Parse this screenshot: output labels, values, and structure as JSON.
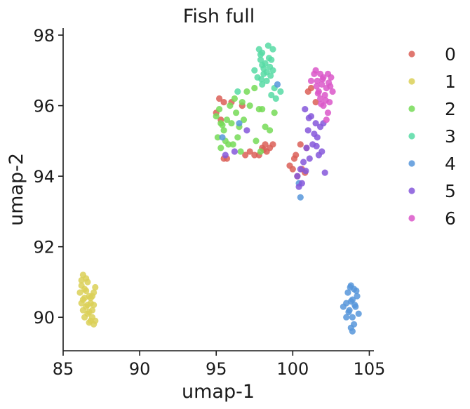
{
  "chart_data": {
    "type": "scatter",
    "title": "Fish full",
    "xlabel": "umap-1",
    "ylabel": "umap-2",
    "xlim": [
      85,
      105.3
    ],
    "ylim": [
      89.05,
      98.2
    ],
    "xticks": [
      85,
      90,
      95,
      100,
      105
    ],
    "yticks": [
      90,
      92,
      94,
      96,
      98
    ],
    "xtick_labels": [
      "85",
      "90",
      "95",
      "100",
      "105"
    ],
    "ytick_labels": [
      "90",
      "92",
      "94",
      "96",
      "98"
    ],
    "grid": false,
    "legend_position": "right",
    "series": [
      {
        "name": "0",
        "color": "#db5f57",
        "points": [
          [
            95.2,
            96.2
          ],
          [
            95.5,
            96.1
          ],
          [
            95.0,
            95.8
          ],
          [
            95.3,
            95.6
          ],
          [
            96.0,
            96.1
          ],
          [
            96.7,
            96.0
          ],
          [
            95.7,
            94.5
          ],
          [
            97.5,
            94.6
          ],
          [
            97.8,
            94.6
          ],
          [
            98.0,
            94.8
          ],
          [
            98.2,
            94.9
          ],
          [
            98.5,
            94.8
          ],
          [
            98.3,
            94.7
          ],
          [
            98.7,
            94.9
          ],
          [
            99.8,
            94.3
          ],
          [
            100.0,
            94.2
          ],
          [
            100.2,
            94.6
          ],
          [
            100.5,
            94.9
          ],
          [
            100.3,
            94.0
          ],
          [
            100.6,
            94.2
          ],
          [
            100.1,
            94.5
          ],
          [
            100.8,
            94.1
          ],
          [
            101.0,
            96.4
          ],
          [
            101.2,
            96.5
          ],
          [
            101.5,
            96.1
          ],
          [
            100.9,
            94.8
          ],
          [
            97.2,
            94.7
          ],
          [
            96.9,
            94.6
          ],
          [
            98.1,
            94.75
          ],
          [
            95.5,
            94.5
          ]
        ]
      },
      {
        "name": "1",
        "color": "#dbd057",
        "points": [
          [
            86.3,
            91.2
          ],
          [
            86.5,
            91.1
          ],
          [
            86.2,
            90.9
          ],
          [
            86.6,
            91.0
          ],
          [
            86.4,
            90.8
          ],
          [
            86.1,
            90.7
          ],
          [
            86.7,
            90.6
          ],
          [
            86.3,
            90.5
          ],
          [
            86.8,
            90.4
          ],
          [
            86.2,
            90.4
          ],
          [
            86.5,
            90.3
          ],
          [
            86.9,
            90.2
          ],
          [
            86.6,
            90.1
          ],
          [
            86.4,
            90.0
          ],
          [
            86.8,
            89.9
          ],
          [
            87.0,
            89.8
          ],
          [
            87.1,
            89.9
          ],
          [
            86.7,
            89.85
          ],
          [
            86.9,
            90.6
          ],
          [
            87.0,
            90.7
          ],
          [
            87.1,
            90.85
          ],
          [
            86.3,
            90.2
          ],
          [
            86.4,
            90.55
          ],
          [
            86.6,
            90.35
          ],
          [
            86.2,
            91.05
          ],
          [
            86.5,
            90.75
          ],
          [
            86.9,
            90.0
          ],
          [
            87.0,
            90.35
          ],
          [
            86.7,
            90.15
          ],
          [
            86.8,
            90.55
          ]
        ]
      },
      {
        "name": "2",
        "color": "#75db57",
        "points": [
          [
            95.2,
            95.9
          ],
          [
            95.0,
            95.7
          ],
          [
            95.3,
            95.5
          ],
          [
            95.5,
            95.3
          ],
          [
            95.1,
            95.1
          ],
          [
            95.6,
            95.0
          ],
          [
            95.8,
            94.9
          ],
          [
            95.3,
            94.8
          ],
          [
            95.7,
            95.6
          ],
          [
            96.0,
            95.5
          ],
          [
            96.5,
            95.4
          ],
          [
            96.8,
            95.6
          ],
          [
            96.3,
            95.8
          ],
          [
            95.9,
            96.0
          ],
          [
            96.2,
            96.2
          ],
          [
            96.7,
            96.1
          ],
          [
            97.0,
            96.4
          ],
          [
            97.5,
            96.5
          ],
          [
            97.2,
            96.0
          ],
          [
            97.8,
            95.9
          ],
          [
            98.2,
            95.4
          ],
          [
            98.5,
            95.3
          ],
          [
            98.8,
            95.8
          ],
          [
            98.0,
            95.9
          ],
          [
            97.6,
            95.0
          ],
          [
            97.9,
            94.7
          ],
          [
            96.4,
            95.1
          ],
          [
            95.4,
            95.45
          ],
          [
            96.1,
            94.9
          ],
          [
            96.6,
            94.7
          ]
        ]
      },
      {
        "name": "3",
        "color": "#57dba4",
        "points": [
          [
            97.8,
            97.6
          ],
          [
            98.0,
            97.5
          ],
          [
            98.4,
            97.7
          ],
          [
            98.7,
            97.6
          ],
          [
            97.9,
            97.3
          ],
          [
            98.2,
            97.2
          ],
          [
            98.5,
            97.1
          ],
          [
            98.7,
            97.0
          ],
          [
            98.1,
            96.9
          ],
          [
            97.7,
            96.8
          ],
          [
            98.3,
            96.7
          ],
          [
            98.8,
            96.5
          ],
          [
            98.0,
            96.6
          ],
          [
            97.5,
            97.0
          ],
          [
            98.6,
            96.3
          ],
          [
            99.2,
            96.4
          ],
          [
            98.9,
            96.2
          ],
          [
            96.4,
            96.4
          ],
          [
            97.9,
            97.45
          ],
          [
            98.3,
            96.95
          ],
          [
            98.6,
            97.3
          ],
          [
            98.1,
            97.05
          ],
          [
            97.95,
            96.75
          ],
          [
            98.45,
            97.35
          ],
          [
            98.0,
            97.15
          ],
          [
            98.55,
            96.85
          ]
        ]
      },
      {
        "name": "4",
        "color": "#5797db",
        "points": [
          [
            103.8,
            90.9
          ],
          [
            104.0,
            90.8
          ],
          [
            103.6,
            90.7
          ],
          [
            104.2,
            90.6
          ],
          [
            103.9,
            90.5
          ],
          [
            103.5,
            90.4
          ],
          [
            104.1,
            90.3
          ],
          [
            103.7,
            90.2
          ],
          [
            104.3,
            90.1
          ],
          [
            103.5,
            90.0
          ],
          [
            103.9,
            90.0
          ],
          [
            104.0,
            89.8
          ],
          [
            103.8,
            89.7
          ],
          [
            103.9,
            89.6
          ],
          [
            103.3,
            90.3
          ],
          [
            103.8,
            90.45
          ],
          [
            104.15,
            90.75
          ],
          [
            103.65,
            90.15
          ],
          [
            104.05,
            90.35
          ],
          [
            103.75,
            90.85
          ],
          [
            99.0,
            96.6
          ],
          [
            100.5,
            93.4
          ],
          [
            96.5,
            95.5
          ],
          [
            95.4,
            95.1
          ],
          [
            100.4,
            93.8
          ]
        ]
      },
      {
        "name": "5",
        "color": "#8557db",
        "points": [
          [
            100.8,
            95.9
          ],
          [
            101.2,
            95.7
          ],
          [
            101.5,
            95.5
          ],
          [
            101.0,
            95.3
          ],
          [
            101.8,
            95.4
          ],
          [
            102.0,
            95.5
          ],
          [
            101.6,
            95.1
          ],
          [
            101.3,
            94.9
          ],
          [
            100.9,
            94.8
          ],
          [
            101.7,
            94.6
          ],
          [
            101.9,
            94.7
          ],
          [
            101.1,
            94.5
          ],
          [
            100.7,
            94.4
          ],
          [
            100.5,
            94.2
          ],
          [
            100.3,
            94.0
          ],
          [
            100.6,
            93.8
          ],
          [
            100.4,
            93.7
          ],
          [
            102.1,
            94.1
          ],
          [
            101.4,
            95.2
          ],
          [
            97.0,
            95.3
          ],
          [
            96.2,
            94.7
          ],
          [
            95.6,
            94.6
          ],
          [
            101.05,
            95.65
          ],
          [
            101.55,
            94.85
          ],
          [
            100.85,
            94.15
          ]
        ]
      },
      {
        "name": "6",
        "color": "#db57c9",
        "points": [
          [
            101.5,
            97.0
          ],
          [
            101.8,
            96.9
          ],
          [
            102.0,
            96.8
          ],
          [
            102.3,
            96.9
          ],
          [
            101.6,
            96.7
          ],
          [
            101.9,
            96.6
          ],
          [
            102.2,
            96.5
          ],
          [
            101.7,
            96.4
          ],
          [
            102.1,
            96.3
          ],
          [
            101.8,
            96.2
          ],
          [
            102.4,
            96.1
          ],
          [
            102.0,
            96.0
          ],
          [
            102.3,
            95.8
          ],
          [
            101.2,
            96.7
          ],
          [
            102.5,
            96.8
          ],
          [
            102.6,
            96.4
          ],
          [
            101.4,
            96.9
          ],
          [
            102.2,
            95.6
          ],
          [
            101.95,
            96.75
          ],
          [
            102.45,
            96.55
          ],
          [
            101.65,
            96.35
          ],
          [
            102.15,
            96.15
          ],
          [
            101.55,
            96.55
          ],
          [
            101.85,
            96.05
          ],
          [
            102.35,
            96.65
          ]
        ]
      }
    ]
  }
}
